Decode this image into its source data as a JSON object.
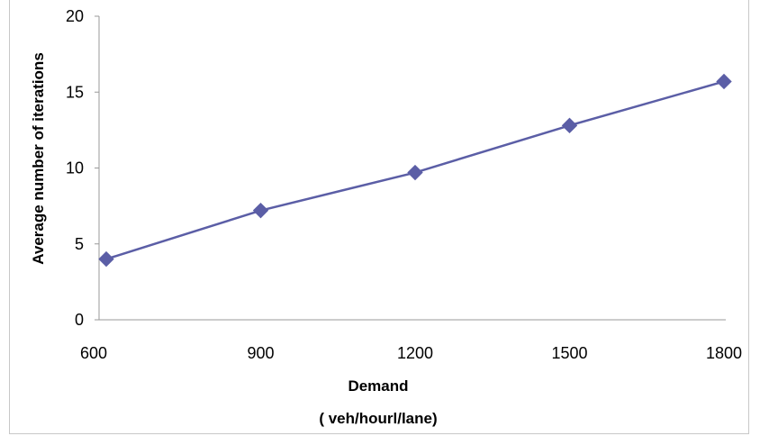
{
  "chart_data": {
    "type": "line",
    "x": [
      600,
      900,
      1200,
      1500,
      1800
    ],
    "series": [
      {
        "values": [
          4.0,
          7.2,
          9.7,
          12.8,
          15.7
        ],
        "color": "#5b5ea6"
      }
    ],
    "xlabel_line1": "Demand",
    "xlabel_line2": "( veh/hourl/lane)",
    "ylabel": "Average number of iterations",
    "ylim": [
      0,
      20
    ],
    "yticks": [
      0,
      5,
      10,
      15,
      20
    ],
    "xticks": [
      600,
      900,
      1200,
      1500,
      1800
    ],
    "grid": false,
    "marker": "diamond",
    "axis_color": "#999999"
  }
}
